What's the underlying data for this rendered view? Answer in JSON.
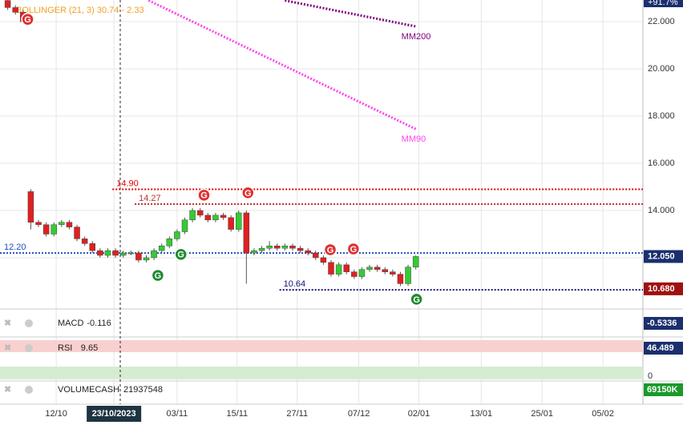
{
  "chart_data": {
    "type": "candlestick",
    "indicator_label": "BOLLINGER (21, 3) 30.74 - 2.33",
    "xlim": [
      -1,
      82.5
    ],
    "xticks": [
      {
        "value": 6.3,
        "label": "12/10"
      },
      {
        "value": 13.8,
        "label": "23/10/2023"
      },
      {
        "value": 22,
        "label": "03/11"
      },
      {
        "value": 29.8,
        "label": "15/11"
      },
      {
        "value": 37.6,
        "label": "27/11"
      },
      {
        "value": 45.6,
        "label": "07/12"
      },
      {
        "value": 53.4,
        "label": "02/01"
      },
      {
        "value": 61.5,
        "label": "13/01"
      },
      {
        "value": 69.4,
        "label": "25/01"
      },
      {
        "value": 77.3,
        "label": "05/02"
      }
    ],
    "ylim": [
      9.93,
      22.92
    ],
    "yticks": [
      {
        "value": 12,
        "label": "12.000"
      },
      {
        "value": 14,
        "label": "14.000"
      },
      {
        "value": 16,
        "label": "16.000"
      },
      {
        "value": 18,
        "label": "18.000"
      },
      {
        "value": 20,
        "label": "20.000"
      },
      {
        "value": 22,
        "label": "22.000"
      }
    ],
    "grid": true,
    "up_color": "#33cc33",
    "down_color": "#e02020",
    "x": [
      0,
      1,
      2,
      3,
      4,
      5,
      6,
      7,
      8,
      9,
      10,
      11,
      12,
      13,
      14,
      15,
      16,
      17,
      18,
      19,
      20,
      21,
      22,
      23,
      24,
      25,
      26,
      27,
      28,
      29,
      30,
      31,
      32,
      33,
      34,
      35,
      36,
      37,
      38,
      39,
      40,
      41,
      42,
      43,
      44,
      45,
      46,
      47,
      48,
      49,
      50,
      51,
      52,
      53
    ],
    "open": [
      22.9,
      22.6,
      22.4,
      14.8,
      13.5,
      13.4,
      13.0,
      13.4,
      13.5,
      13.3,
      12.8,
      12.6,
      12.3,
      12.1,
      12.3,
      12.1,
      12.2,
      12.2,
      11.9,
      12.0,
      12.3,
      12.5,
      12.8,
      13.1,
      13.6,
      14.0,
      13.8,
      13.6,
      13.8,
      13.7,
      13.2,
      13.9,
      12.2,
      12.3,
      12.4,
      12.5,
      12.4,
      12.5,
      12.4,
      12.3,
      12.2,
      12.0,
      11.8,
      11.3,
      11.7,
      11.4,
      11.2,
      11.5,
      11.6,
      11.5,
      11.4,
      11.3,
      10.9,
      11.6
    ],
    "high": [
      23.0,
      22.7,
      22.5,
      14.9,
      13.6,
      13.5,
      13.5,
      13.6,
      13.6,
      13.4,
      12.9,
      12.7,
      12.4,
      12.4,
      12.4,
      12.3,
      12.3,
      12.3,
      12.1,
      12.4,
      12.6,
      12.9,
      13.2,
      13.7,
      14.1,
      14.1,
      13.9,
      13.9,
      13.9,
      13.8,
      14.0,
      14.0,
      12.4,
      12.5,
      12.7,
      12.6,
      12.6,
      12.6,
      12.5,
      12.4,
      12.3,
      12.1,
      11.9,
      11.8,
      11.8,
      11.5,
      11.6,
      11.7,
      11.7,
      11.6,
      11.5,
      11.4,
      11.7,
      12.1
    ],
    "low": [
      22.5,
      22.3,
      21.9,
      13.2,
      13.3,
      12.9,
      12.9,
      13.3,
      13.2,
      12.7,
      12.5,
      12.2,
      12.0,
      12.0,
      12.0,
      12.0,
      12.1,
      11.8,
      11.8,
      11.9,
      12.2,
      12.4,
      12.7,
      13.0,
      13.5,
      13.7,
      13.5,
      13.5,
      13.6,
      13.1,
      13.1,
      10.9,
      12.1,
      12.2,
      12.3,
      12.3,
      12.3,
      12.3,
      12.2,
      12.1,
      11.9,
      11.7,
      11.2,
      11.2,
      11.3,
      11.1,
      11.1,
      11.4,
      11.4,
      11.3,
      11.2,
      10.8,
      10.8,
      11.5
    ],
    "close": [
      22.6,
      22.4,
      22.0,
      13.5,
      13.4,
      13.0,
      13.4,
      13.5,
      13.3,
      12.8,
      12.6,
      12.3,
      12.1,
      12.3,
      12.1,
      12.2,
      12.2,
      11.9,
      12.0,
      12.3,
      12.5,
      12.8,
      13.1,
      13.6,
      14.0,
      13.8,
      13.6,
      13.8,
      13.7,
      13.2,
      13.9,
      12.2,
      12.3,
      12.4,
      12.5,
      12.4,
      12.5,
      12.4,
      12.3,
      12.2,
      12.0,
      11.8,
      11.3,
      11.7,
      11.4,
      11.2,
      11.5,
      11.6,
      11.5,
      11.4,
      11.3,
      10.9,
      11.6,
      12.05
    ],
    "lines": [
      {
        "name": "MM200",
        "color": "#800080",
        "x": [
          36,
          53
        ],
        "values": [
          22.9,
          21.8
        ]
      },
      {
        "name": "MM90",
        "color": "#ff44ee",
        "x": [
          18.3,
          53
        ],
        "values": [
          22.9,
          17.45
        ]
      }
    ],
    "levels": [
      {
        "value": 14.9,
        "label": "14.90",
        "from": 13.6,
        "color": "#e00000"
      },
      {
        "value": 14.27,
        "label": "14.27",
        "from": 16.5,
        "color": "#c03030"
      },
      {
        "value": 12.2,
        "label": "12.20",
        "from": -1,
        "color": "#2050c0"
      },
      {
        "value": 10.64,
        "label": "10.64",
        "from": 35.3,
        "color": "#10107a"
      }
    ],
    "signals": [
      {
        "x": 2.6,
        "y": 22.1,
        "label": "G",
        "color": "#e03030"
      },
      {
        "x": 25.5,
        "y": 14.65,
        "label": "G",
        "color": "#e03030"
      },
      {
        "x": 31.2,
        "y": 14.75,
        "label": "G",
        "color": "#e03030"
      },
      {
        "x": 41.9,
        "y": 12.34,
        "label": "G",
        "color": "#e03030"
      },
      {
        "x": 44.9,
        "y": 12.37,
        "label": "G",
        "color": "#e03030"
      },
      {
        "x": 22.5,
        "y": 12.14,
        "label": "G",
        "color": "#1e8a2e"
      },
      {
        "x": 19.5,
        "y": 11.25,
        "label": "G",
        "color": "#1e8a2e"
      },
      {
        "x": 53.1,
        "y": 10.24,
        "label": "G",
        "color": "#1e8a2e"
      }
    ],
    "price_tags": [
      {
        "value": 12.05,
        "label": "12.050",
        "color": "#1b2f6e"
      },
      {
        "value": 10.68,
        "label": "10.680",
        "color": "#a01010"
      }
    ],
    "change_label": "+91.7%",
    "panels": [
      {
        "name": "MACD",
        "value": -0.116,
        "axis_value": -0.5336,
        "color": "#1b2f6e"
      },
      {
        "name": "RSI",
        "value": 9.65,
        "axis_value": 46.489,
        "color": "#1b2f6e",
        "zero_tick": 0
      },
      {
        "name": "VOLUMECASH",
        "value": 21937548,
        "axis_value": {
          "value": 69150000,
          "label": "69150K"
        },
        "color": "#1a9a2a"
      }
    ]
  }
}
